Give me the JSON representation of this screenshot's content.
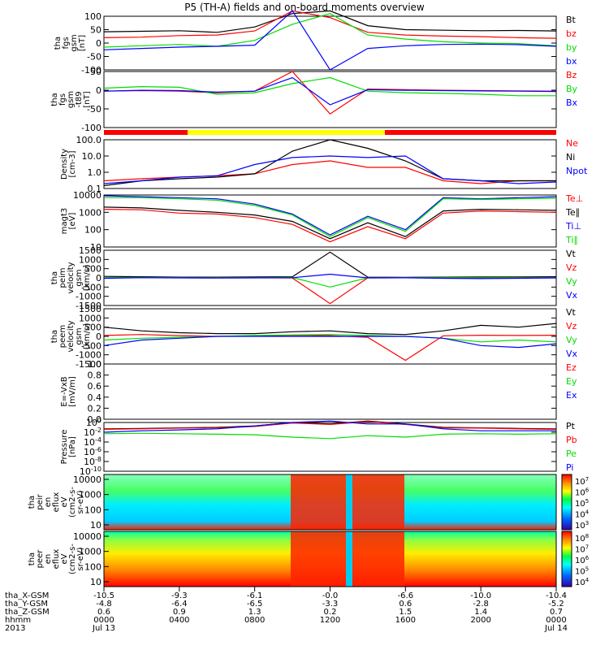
{
  "chart_data": {
    "type": "line",
    "title": "P5 (TH-A) fields and on-board moments overview",
    "time_ticks": [
      "0000",
      "0400",
      "0800",
      "1200",
      "1600",
      "2000",
      "0000"
    ],
    "date_labels": [
      "Jul 13",
      "Jul 14"
    ],
    "ephemeris": {
      "row_labels": [
        "tha_X-GSM",
        "tha_Y-GSM",
        "tha_Z-GSM",
        "hhmm",
        "2013"
      ],
      "x": [
        "-10.5",
        "-9.3",
        "-6.1",
        "-0.0",
        "-6.6",
        "-10.0",
        "-10.4"
      ],
      "y": [
        "-4.8",
        "-6.4",
        "-6.5",
        "-3.3",
        "0.6",
        "-2.8",
        "-5.2"
      ],
      "z": [
        "0.6",
        "0.9",
        "1.3",
        "0.2",
        "1.5",
        "1.4",
        "0.7"
      ]
    },
    "colors": {
      "black": "#000000",
      "red": "#ff0000",
      "green": "#00dd00",
      "blue": "#0000ff",
      "yellow": "#ffff00"
    },
    "panels": [
      {
        "ylabel": [
          "tha",
          "fgs",
          "gsm",
          "[nT]"
        ],
        "yticks": [
          "100",
          "50",
          "0",
          "-50",
          "-100"
        ],
        "legend": [
          "Bt",
          "bz",
          "by",
          "bx"
        ],
        "series": [
          {
            "name": "Bt",
            "values": [
              42,
              44,
              46,
              40,
              60,
              110,
              120,
              65,
              50,
              48,
              46,
              47,
              45
            ]
          },
          {
            "name": "bz",
            "values": [
              20,
              22,
              28,
              30,
              45,
              120,
              95,
              40,
              30,
              26,
              24,
              20,
              18
            ]
          },
          {
            "name": "by",
            "values": [
              -15,
              -10,
              -5,
              -12,
              10,
              70,
              110,
              30,
              15,
              5,
              0,
              -2,
              -10
            ]
          },
          {
            "name": "bx",
            "values": [
              -25,
              -20,
              -15,
              -12,
              -8,
              120,
              -100,
              -20,
              -10,
              -5,
              -4,
              -6,
              -12
            ]
          }
        ]
      },
      {
        "ylabel": [
          "tha",
          "fgs",
          "gsm",
          "-t89",
          "[nT]"
        ],
        "yticks": [
          "50",
          "0",
          "-50",
          "-100"
        ],
        "legend": [
          "Bz",
          "By",
          "Bx"
        ],
        "series": [
          {
            "name": "Bz",
            "values": [
              -5,
              -3,
              -5,
              -10,
              -5,
              60,
              -80,
              2,
              0,
              -2,
              -3,
              -4,
              -5
            ]
          },
          {
            "name": "By",
            "values": [
              5,
              10,
              8,
              -15,
              -10,
              20,
              40,
              -5,
              -10,
              -12,
              -15,
              -20,
              -20
            ]
          },
          {
            "name": "Bx",
            "values": [
              -5,
              -2,
              -3,
              -8,
              -5,
              40,
              -50,
              0,
              -2,
              -3,
              -4,
              -5,
              -6
            ]
          }
        ]
      },
      {
        "ylabel": [
          "Density",
          "[cm-3]"
        ],
        "yticks": [
          "100.0",
          "10.0",
          "1.0",
          "0.1"
        ],
        "legend": [
          "Ne",
          "Ni",
          "Npot"
        ],
        "series": [
          {
            "name": "Ne",
            "values": [
              0.3,
              0.4,
              0.5,
              0.6,
              0.8,
              3,
              5,
              2,
              2,
              0.3,
              0.2,
              0.3,
              0.3
            ]
          },
          {
            "name": "Ni",
            "values": [
              0.15,
              0.3,
              0.4,
              0.5,
              0.8,
              20,
              100,
              30,
              5,
              0.4,
              0.3,
              0.3,
              0.3
            ]
          },
          {
            "name": "Npot",
            "values": [
              0.2,
              0.3,
              0.5,
              0.6,
              3,
              8,
              10,
              8,
              10,
              0.4,
              0.3,
              0.2,
              0.25
            ]
          }
        ]
      },
      {
        "ylabel": [
          "magt3",
          "[eV]"
        ],
        "yticks": [
          "10000",
          "1000",
          "100",
          "10"
        ],
        "legend": [
          "Te⊥",
          "Te∥",
          "Ti⊥",
          "Ti∥"
        ],
        "series": [
          {
            "name": "Te⊥",
            "values": [
              1500,
              1400,
              900,
              800,
              500,
              200,
              20,
              150,
              30,
              900,
              1200,
              1100,
              1000
            ]
          },
          {
            "name": "Te∥",
            "values": [
              2000,
              1800,
              1300,
              1000,
              700,
              300,
              30,
              250,
              40,
              1200,
              1500,
              1400,
              1300
            ]
          },
          {
            "name": "Ti⊥",
            "values": [
              9000,
              8000,
              7000,
              6000,
              3000,
              800,
              50,
              600,
              100,
              7000,
              6000,
              7000,
              8000
            ]
          },
          {
            "name": "Ti∥",
            "values": [
              7000,
              7000,
              6000,
              5000,
              2500,
              700,
              40,
              500,
              80,
              6000,
              5500,
              6000,
              6500
            ]
          }
        ]
      },
      {
        "ylabel": [
          "tha",
          "peim",
          "velocity",
          "gsm",
          "[km/s]"
        ],
        "yticks": [
          "1500",
          "1000",
          "500",
          "0",
          "-500",
          "-1000",
          "-1500"
        ],
        "legend": [
          "Vt",
          "Vz",
          "Vy",
          "Vx"
        ],
        "series": [
          {
            "name": "Vt",
            "values": [
              80,
              60,
              40,
              40,
              50,
              60,
              1400,
              40,
              30,
              40,
              50,
              50,
              60
            ]
          },
          {
            "name": "Vz",
            "values": [
              0,
              10,
              5,
              0,
              5,
              -10,
              -1400,
              0,
              5,
              0,
              10,
              5,
              0
            ]
          },
          {
            "name": "Vy",
            "values": [
              10,
              20,
              10,
              5,
              10,
              20,
              -500,
              5,
              10,
              15,
              10,
              5,
              10
            ]
          },
          {
            "name": "Vx",
            "values": [
              -20,
              10,
              0,
              -10,
              0,
              10,
              200,
              0,
              5,
              -20,
              -40,
              -20,
              0
            ]
          }
        ]
      },
      {
        "ylabel": [
          "tha",
          "peem",
          "velocity",
          "gsm",
          "[km/s]"
        ],
        "yticks": [
          "1500",
          "1000",
          "500",
          "0",
          "-500",
          "-1000",
          "-1500"
        ],
        "legend": [
          "Vt",
          "Vz",
          "Vy",
          "Vx"
        ],
        "series": [
          {
            "name": "Vt",
            "values": [
              500,
              300,
              200,
              150,
              150,
              250,
              300,
              150,
              100,
              300,
              600,
              500,
              700
            ]
          },
          {
            "name": "Vz",
            "values": [
              50,
              100,
              40,
              0,
              20,
              60,
              40,
              -50,
              -1300,
              30,
              60,
              50,
              60
            ]
          },
          {
            "name": "Vy",
            "values": [
              -200,
              -100,
              -50,
              0,
              50,
              80,
              100,
              50,
              0,
              -100,
              -300,
              -200,
              -300
            ]
          },
          {
            "name": "Vx",
            "values": [
              -500,
              -200,
              -100,
              0,
              0,
              0,
              0,
              0,
              0,
              -100,
              -500,
              -600,
              -400
            ]
          }
        ]
      },
      {
        "ylabel": [
          "E=-VxB",
          "[mV/m]"
        ],
        "yticks": [
          "1.0",
          "0.8",
          "0.6",
          "0.4",
          "0.2",
          "0.0"
        ],
        "legend": [
          "Ez",
          "Ey",
          "Ex"
        ],
        "series": []
      },
      {
        "ylabel": [
          "Pressure",
          "[nPa]"
        ],
        "yticks": [
          "10^0",
          "10^-2",
          "10^-4",
          "10^-6",
          "10^-8",
          "10^-10"
        ],
        "legend": [
          "Pt",
          "Pb",
          "Pe",
          "Pi"
        ],
        "series": [
          {
            "name": "Pt",
            "values": [
              0.05,
              0.06,
              0.08,
              0.1,
              0.2,
              1,
              0.5,
              2,
              0.5,
              0.1,
              0.08,
              0.06,
              0.05
            ]
          },
          {
            "name": "Pb",
            "values": [
              0.04,
              0.05,
              0.07,
              0.08,
              0.15,
              0.8,
              0.4,
              1.5,
              0.4,
              0.08,
              0.07,
              0.05,
              0.04
            ]
          },
          {
            "name": "Pe",
            "values": [
              0.005,
              0.006,
              0.005,
              0.004,
              0.003,
              0.001,
              0.0005,
              0.002,
              0.001,
              0.004,
              0.005,
              0.004,
              0.005
            ]
          },
          {
            "name": "Pi",
            "values": [
              0.01,
              0.02,
              0.03,
              0.05,
              0.2,
              1,
              2,
              0.5,
              0.5,
              0.05,
              0.02,
              0.02,
              0.02
            ]
          }
        ]
      }
    ],
    "spectrograms": [
      {
        "ylabel": [
          "tha",
          "peir",
          "en",
          "eflux",
          "eV",
          "(cm2-s-",
          "sr-eV)"
        ],
        "yticks": [
          "10000",
          "1000",
          "100",
          "10"
        ],
        "colorbar_ticks": [
          "10^7",
          "10^6",
          "10^5",
          "10^4",
          "10^3"
        ]
      },
      {
        "ylabel": [
          "tha",
          "peer",
          "en",
          "eflux",
          "eV",
          "(cm2-s-",
          "sr-eV)"
        ],
        "yticks": [
          "10000",
          "1000",
          "100",
          "10"
        ],
        "colorbar_ticks": [
          "10^8",
          "10^7",
          "10^6",
          "10^5",
          "10^4"
        ]
      }
    ]
  }
}
